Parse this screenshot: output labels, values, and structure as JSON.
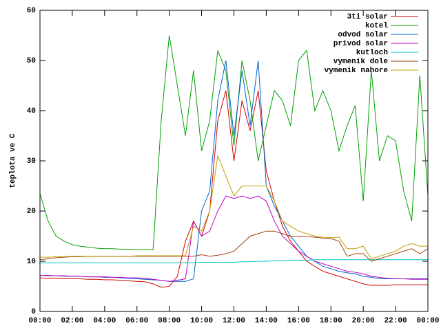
{
  "chart_data": {
    "type": "line",
    "ylabel": "teplota ve C",
    "xlim": [
      0,
      24
    ],
    "ylim": [
      0,
      60
    ],
    "yticks": [
      0,
      10,
      20,
      30,
      40,
      50,
      60
    ],
    "xticks": [
      {
        "value": 0,
        "label": "00:00"
      },
      {
        "value": 2,
        "label": "02:00"
      },
      {
        "value": 4,
        "label": "04:00"
      },
      {
        "value": 6,
        "label": "06:00"
      },
      {
        "value": 8,
        "label": "08:00"
      },
      {
        "value": 10,
        "label": "10:00"
      },
      {
        "value": 12,
        "label": "12:00"
      },
      {
        "value": 14,
        "label": "14:00"
      },
      {
        "value": 16,
        "label": "16:00"
      },
      {
        "value": 18,
        "label": "18:00"
      },
      {
        "value": 20,
        "label": "20:00"
      },
      {
        "value": 22,
        "label": "22:00"
      },
      {
        "value": 24,
        "label": "00:00"
      }
    ],
    "legend": "top-right",
    "x": [
      0,
      0.5,
      1,
      1.5,
      2,
      2.5,
      3,
      3.5,
      4,
      4.5,
      5,
      5.5,
      6,
      6.5,
      7,
      7.5,
      8,
      8.5,
      9,
      9.5,
      10,
      10.5,
      11,
      11.5,
      12,
      12.5,
      13,
      13.5,
      14,
      14.5,
      15,
      15.5,
      16,
      16.5,
      17,
      17.5,
      18,
      18.5,
      19,
      19.5,
      20,
      20.5,
      21,
      21.5,
      22,
      22.5,
      23,
      23.5,
      24
    ],
    "series": [
      {
        "name": "3ti solar",
        "color": "#d00000",
        "values": [
          6.7,
          6.6,
          6.6,
          6.5,
          6.5,
          6.5,
          6.4,
          6.4,
          6.3,
          6.3,
          6.2,
          6.1,
          6.0,
          5.9,
          5.5,
          4.8,
          5.0,
          7,
          14,
          18,
          15,
          20,
          38,
          44,
          30,
          42,
          36,
          44,
          28,
          22,
          17,
          14,
          12,
          10,
          9,
          8,
          7.5,
          7,
          6.5,
          6,
          5.5,
          5.2,
          5.2,
          5.2,
          5.3,
          5.3,
          5.3,
          5.3,
          5.3
        ]
      },
      {
        "name": "kotel",
        "color": "#00a000",
        "values": [
          23.5,
          18,
          15,
          14,
          13.3,
          13,
          12.8,
          12.6,
          12.5,
          12.5,
          12.4,
          12.4,
          12.3,
          12.3,
          12.3,
          38,
          55,
          45,
          35,
          48,
          32,
          38,
          52,
          48,
          33,
          50,
          42,
          30,
          37,
          44,
          42,
          37,
          50,
          52,
          40,
          44,
          40,
          32,
          37,
          41,
          22,
          48,
          30,
          35,
          34,
          24,
          18,
          47,
          23
        ]
      },
      {
        "name": "odvod solar",
        "color": "#0060d0",
        "values": [
          7.2,
          7.1,
          7.1,
          7.0,
          7.0,
          7.0,
          6.9,
          6.9,
          6.8,
          6.8,
          6.7,
          6.6,
          6.5,
          6.4,
          6.3,
          6.2,
          6.0,
          6.0,
          6.0,
          6.5,
          20,
          24,
          42,
          50,
          35,
          48,
          37,
          50,
          25,
          21,
          18,
          15,
          13,
          11,
          10,
          9,
          8.5,
          8,
          7.7,
          7.5,
          7,
          6.8,
          6.5,
          6.5,
          6.5,
          6.5,
          6.5,
          6.5,
          6.5
        ]
      },
      {
        "name": "privod solar",
        "color": "#c000c0",
        "values": [
          7.2,
          7.2,
          7.1,
          7.1,
          7.0,
          7.0,
          6.9,
          6.9,
          6.9,
          6.8,
          6.8,
          6.7,
          6.7,
          6.6,
          6.4,
          6.2,
          6.0,
          6.2,
          6.5,
          18,
          15,
          16,
          20,
          23,
          22.5,
          23,
          22.5,
          23,
          22,
          18,
          15,
          13.5,
          12,
          11,
          10,
          9.5,
          9,
          8.5,
          8,
          7.8,
          7.5,
          7,
          6.8,
          6.6,
          6.5,
          6.5,
          6.4,
          6.4,
          6.4
        ]
      },
      {
        "name": "kutloch",
        "color": "#00c0c0",
        "values": [
          9.7,
          9.7,
          9.7,
          9.7,
          9.7,
          9.7,
          9.7,
          9.7,
          9.7,
          9.7,
          9.7,
          9.7,
          9.7,
          9.7,
          9.7,
          9.7,
          9.7,
          9.7,
          9.7,
          9.7,
          9.8,
          9.8,
          9.8,
          9.8,
          9.8,
          9.9,
          9.9,
          10,
          10,
          10.1,
          10.1,
          10.2,
          10.2,
          10.2,
          10.3,
          10.3,
          10.3,
          10.3,
          10.3,
          10.3,
          10.3,
          10.3,
          10.3,
          10.3,
          10.3,
          10.3,
          10.3,
          10.3,
          10.3
        ]
      },
      {
        "name": "vymenik dole",
        "color": "#a04010",
        "values": [
          10.3,
          10.5,
          10.7,
          10.8,
          10.9,
          10.9,
          11,
          11,
          11,
          11,
          11,
          11,
          11,
          11,
          11,
          11,
          11,
          11,
          11,
          11,
          11.3,
          11,
          11.2,
          11.5,
          12,
          13.5,
          15,
          15.5,
          16,
          16,
          15.5,
          15,
          15,
          14.9,
          14.8,
          14.6,
          14.5,
          14,
          11,
          11.5,
          11.5,
          10,
          10.5,
          11,
          11.5,
          12,
          12.5,
          11.5,
          12.5
        ]
      },
      {
        "name": "vymenik nahore",
        "color": "#c0a000",
        "values": [
          10.8,
          10.8,
          10.9,
          10.9,
          11,
          11,
          11,
          11,
          11,
          11,
          11,
          11,
          11.1,
          11.1,
          11.1,
          11.1,
          11.1,
          11.1,
          11.1,
          17,
          16,
          20,
          31,
          27,
          23,
          25,
          25,
          25,
          25,
          22,
          18,
          17,
          16,
          15.5,
          15,
          14.8,
          14.7,
          14.8,
          12.5,
          12.5,
          13,
          10.5,
          11,
          11.5,
          12,
          13,
          13.5,
          13,
          13
        ]
      }
    ]
  }
}
